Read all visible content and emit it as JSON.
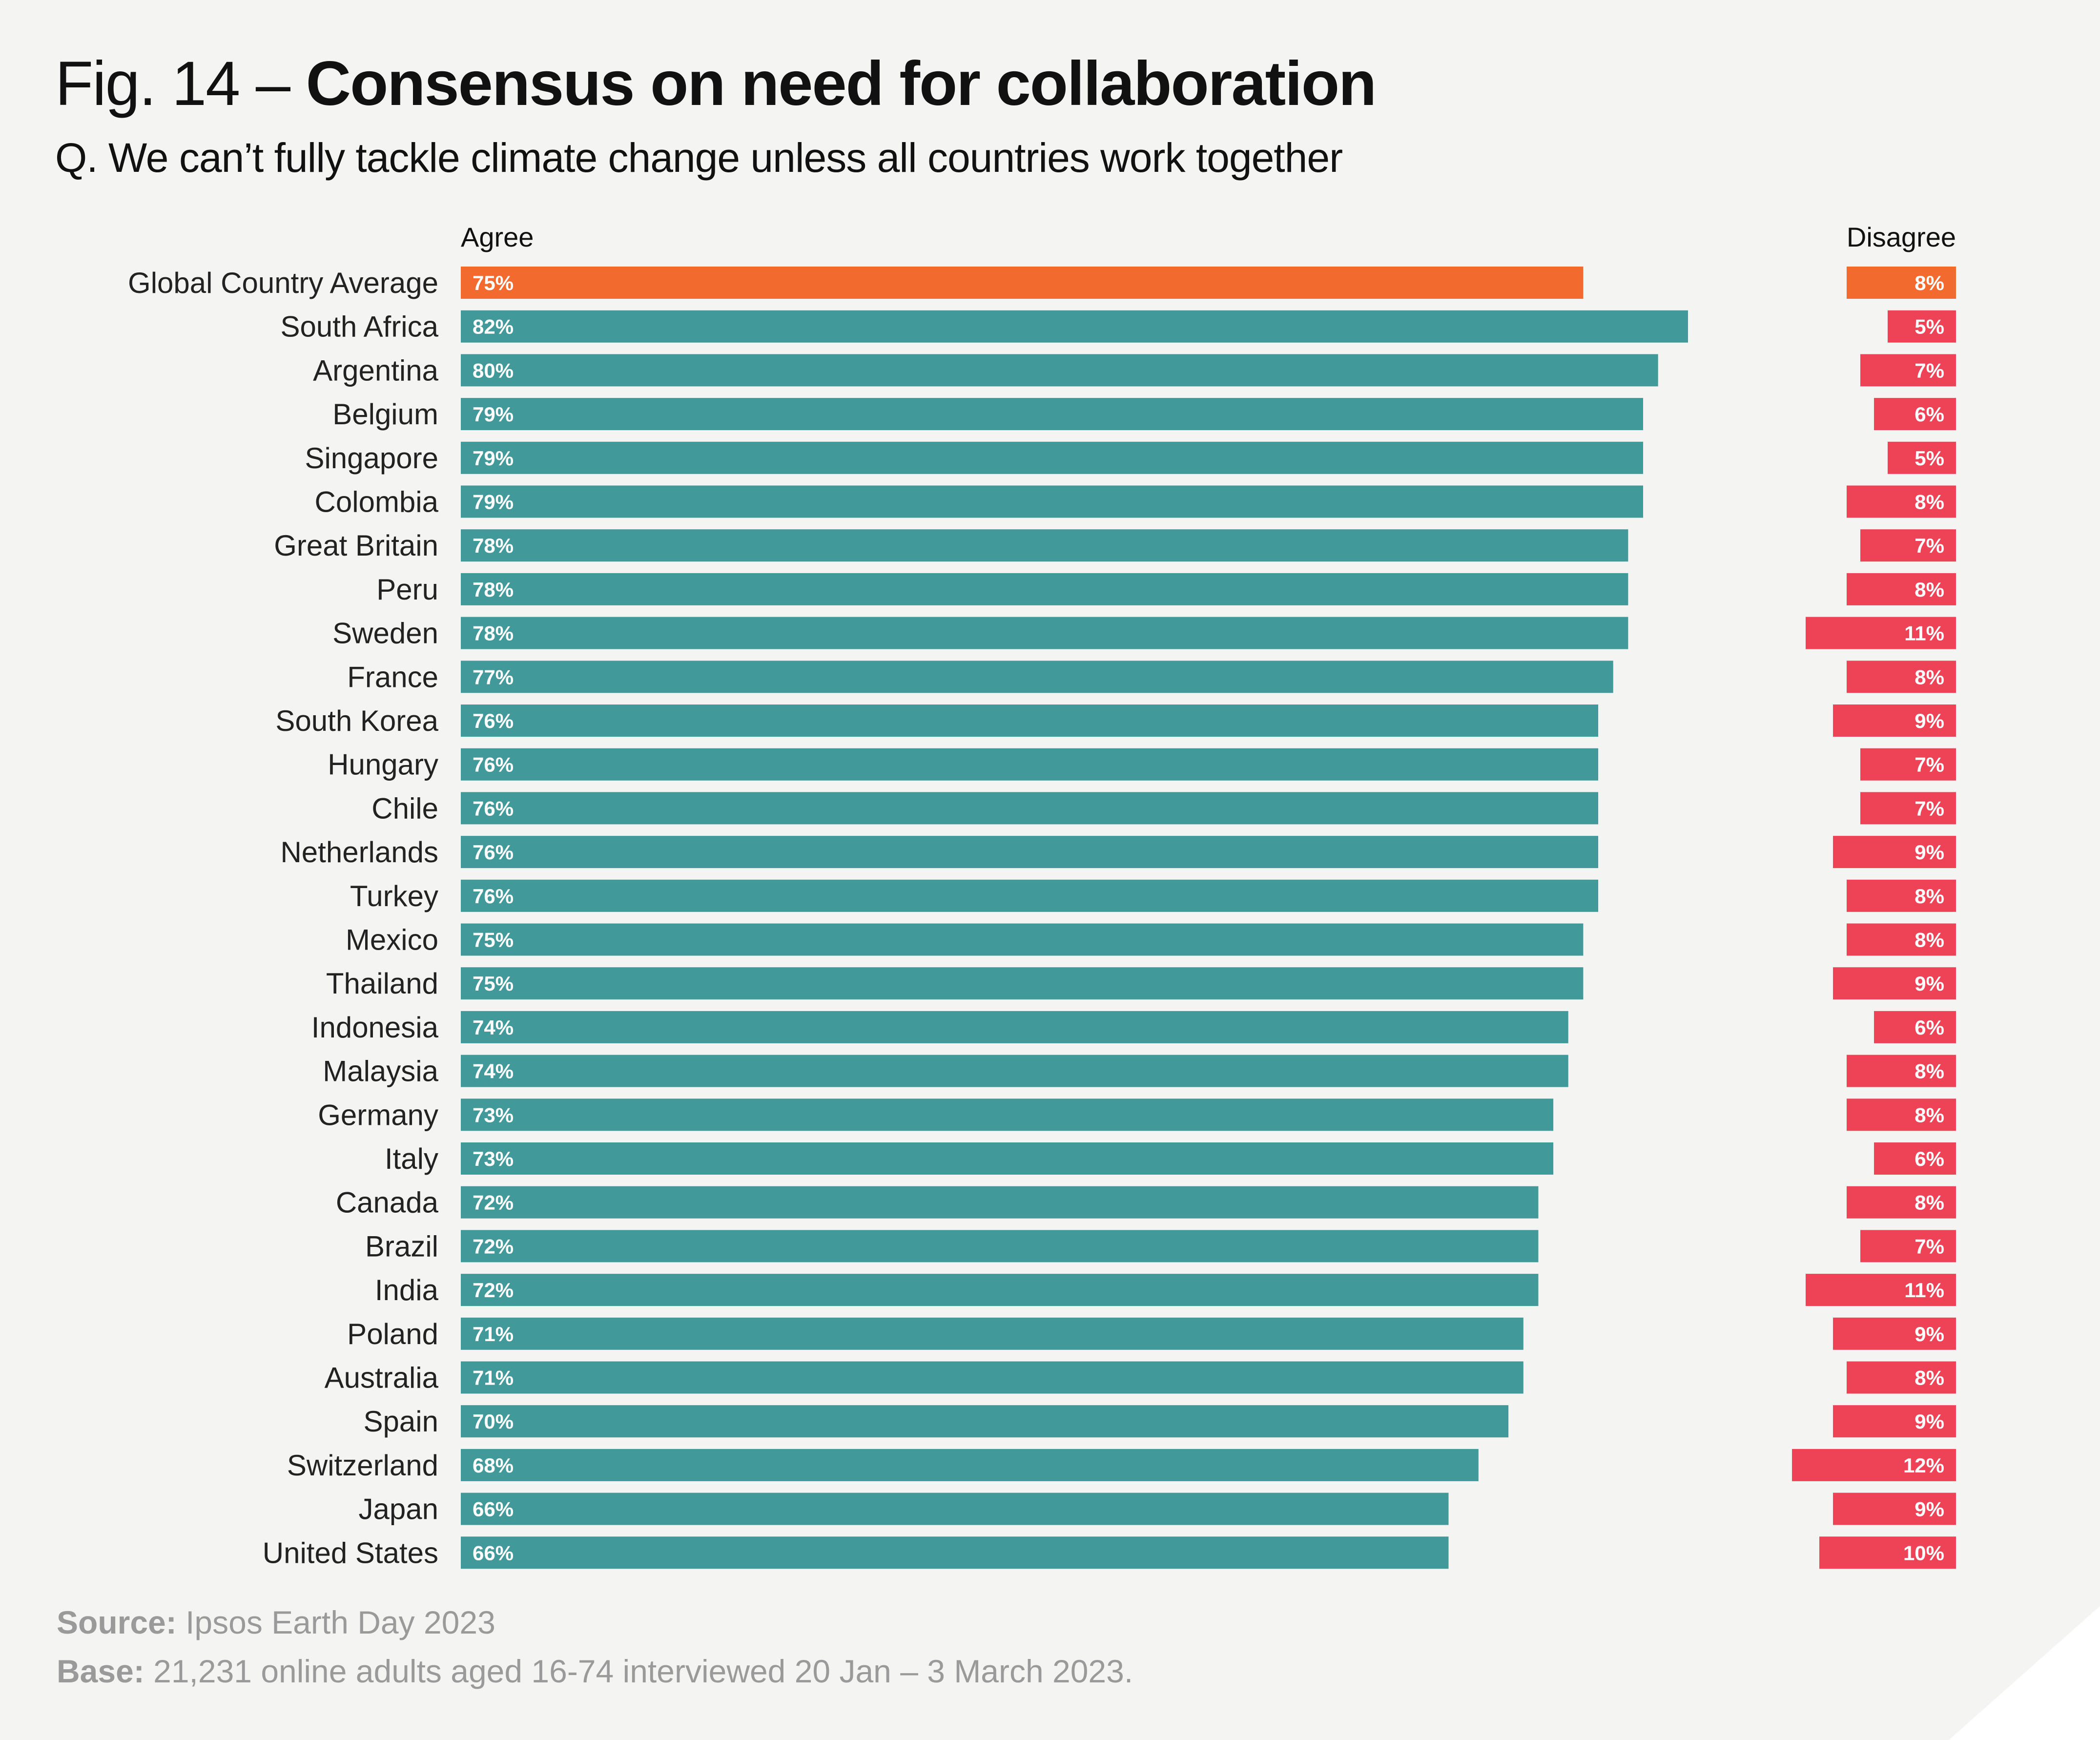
{
  "title_prefix": "Fig. 14 – ",
  "title_bold": "Consensus on need for collaboration",
  "subtitle": "Q. We can’t fully tackle climate change unless all countries work together",
  "source_label": "Source:",
  "source_text": "Ipsos Earth Day 2023",
  "base_label": "Base:",
  "base_text": "21,231 online adults aged 16-74 interviewed 20 Jan – 3 March 2023.",
  "colors": {
    "highlight": "#f26a2d",
    "agree": "#42999a",
    "disagree": "#ee4357",
    "background": "#f4f4f2"
  },
  "chart_data": {
    "type": "bar",
    "orientation": "horizontal",
    "agree_header": "Agree",
    "disagree_header": "Disagree",
    "categories": [
      "Global Country Average",
      "South Africa",
      "Argentina",
      "Belgium",
      "Singapore",
      "Colombia",
      "Great Britain",
      "Peru",
      "Sweden",
      "France",
      "South Korea",
      "Hungary",
      "Chile",
      "Netherlands",
      "Turkey",
      "Mexico",
      "Thailand",
      "Indonesia",
      "Malaysia",
      "Germany",
      "Italy",
      "Canada",
      "Brazil",
      "India",
      "Poland",
      "Australia",
      "Spain",
      "Switzerland",
      "Japan",
      "United States"
    ],
    "series": [
      {
        "name": "Agree",
        "values": [
          75,
          82,
          80,
          79,
          79,
          79,
          78,
          78,
          78,
          77,
          76,
          76,
          76,
          76,
          76,
          75,
          75,
          74,
          74,
          73,
          73,
          72,
          72,
          72,
          71,
          71,
          70,
          68,
          66,
          66
        ]
      },
      {
        "name": "Disagree",
        "values": [
          8,
          5,
          7,
          6,
          5,
          8,
          7,
          8,
          11,
          8,
          9,
          7,
          7,
          9,
          8,
          8,
          9,
          6,
          8,
          8,
          6,
          8,
          7,
          11,
          9,
          8,
          9,
          12,
          9,
          10
        ]
      }
    ],
    "highlight_index": 0,
    "value_suffix": "%"
  }
}
